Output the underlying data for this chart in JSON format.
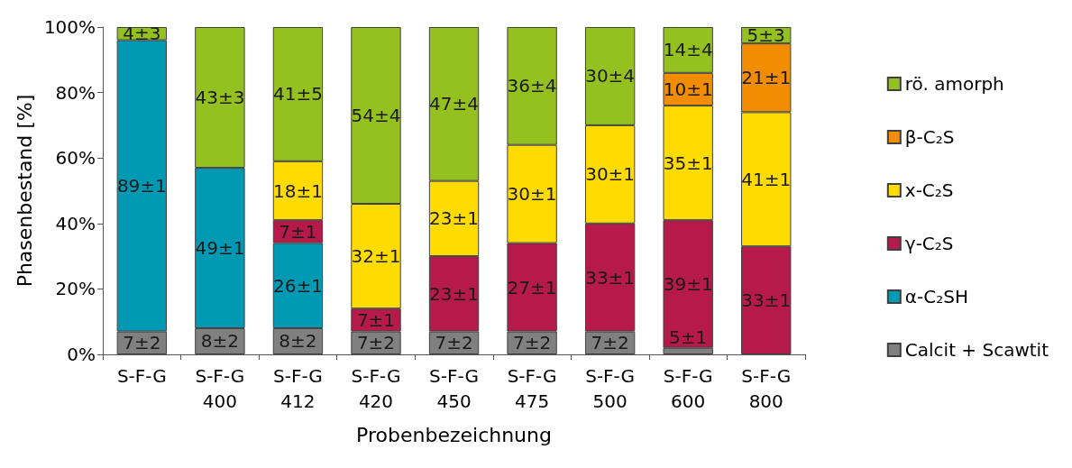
{
  "chart_data": {
    "type": "bar",
    "stacked": true,
    "xlabel": "Probenbezeichnung",
    "ylabel": "Phasenbestand [%]",
    "categories": [
      "S-F-G",
      "S-F-G\n400",
      "S-F-G\n412",
      "S-F-G\n420",
      "S-F-G\n450",
      "S-F-G\n475",
      "S-F-G\n500",
      "S-F-G\n600",
      "S-F-G\n800"
    ],
    "ylim": [
      0,
      100
    ],
    "yticks": [
      {
        "value": 0,
        "label": "0%"
      },
      {
        "value": 20,
        "label": "20%"
      },
      {
        "value": 40,
        "label": "40%"
      },
      {
        "value": 60,
        "label": "60%"
      },
      {
        "value": 80,
        "label": "80%"
      },
      {
        "value": 100,
        "label": "100%"
      }
    ],
    "grid": false,
    "legend": "right",
    "annotations": [
      {
        "text": "5±1",
        "x": "S-F-G\n600",
        "y": 2
      }
    ],
    "series": [
      {
        "name": "Calcit + Scawtit",
        "color": "#808080",
        "values": [
          7,
          8,
          8,
          7,
          7,
          7,
          7,
          2,
          null
        ],
        "value_labels": [
          "7±2",
          "8±2",
          "8±2",
          "7±2",
          "7±2",
          "7±2",
          "7±2",
          null,
          null
        ]
      },
      {
        "name": "α-C₂SH",
        "color": "#0099b4",
        "values": [
          89,
          49,
          26,
          null,
          null,
          null,
          null,
          null,
          null
        ],
        "value_labels": [
          "89±1",
          "49±1",
          "26±1",
          null,
          null,
          null,
          null,
          null,
          null
        ]
      },
      {
        "name": "γ-C₂S",
        "color": "#b51a4b",
        "values": [
          null,
          null,
          7,
          7,
          23,
          27,
          33,
          39,
          33
        ],
        "value_labels": [
          null,
          null,
          "7±1",
          "7±1",
          "23±1",
          "27±1",
          "33±1",
          "39±1",
          "33±1"
        ]
      },
      {
        "name": "x-C₂S",
        "color": "#ffdb00",
        "values": [
          null,
          null,
          18,
          32,
          23,
          30,
          30,
          35,
          41
        ],
        "value_labels": [
          null,
          null,
          "18±1",
          "32±1",
          "23±1",
          "30±1",
          "30±1",
          "35±1",
          "41±1"
        ]
      },
      {
        "name": "β-C₂S",
        "color": "#f28c00",
        "values": [
          null,
          null,
          null,
          null,
          null,
          null,
          null,
          10,
          21
        ],
        "value_labels": [
          null,
          null,
          null,
          null,
          null,
          null,
          null,
          "10±1",
          "21±1"
        ]
      },
      {
        "name": "rö. amorph",
        "color": "#94c11f",
        "values": [
          4,
          43,
          41,
          54,
          47,
          36,
          30,
          14,
          5
        ],
        "value_labels": [
          "4±3",
          "43±3",
          "41±5",
          "54±4",
          "47±4",
          "36±4",
          "30±4",
          "14±4",
          "5±3"
        ]
      }
    ]
  }
}
